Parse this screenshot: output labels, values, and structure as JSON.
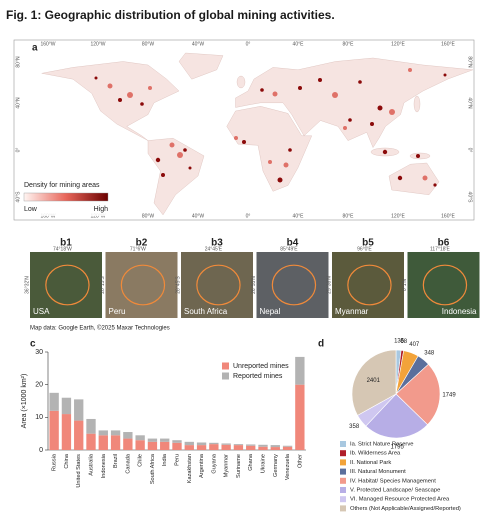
{
  "title": "Fig. 1: Geographic distribution of global mining activities.",
  "map": {
    "panel": "a",
    "lon_labels": [
      "160°W",
      "120°W",
      "80°W",
      "40°W",
      "0°",
      "40°E",
      "80°E",
      "120°E",
      "160°E"
    ],
    "lat_labels": [
      "80°N",
      "40°N",
      "0°",
      "40°S"
    ],
    "legend_title": "Density for mining areas",
    "legend_low": "Low",
    "legend_high": "High"
  },
  "insets": [
    {
      "label": "b1",
      "lon": "74°18'W",
      "lat": "36°32'N",
      "place": "USA"
    },
    {
      "label": "b2",
      "lon": "71°6'W",
      "lat": "20°15'S",
      "place": "Peru"
    },
    {
      "label": "b3",
      "lon": "24°45'E",
      "lat": "28°45'S",
      "place": "South Africa"
    },
    {
      "label": "b4",
      "lon": "85°49'E",
      "lat": "26°55'N",
      "place": "Nepal"
    },
    {
      "label": "b5",
      "lon": "96°0'E",
      "lat": "25°38'N",
      "place": "Myanmar"
    },
    {
      "label": "b6",
      "lon": "117°18'E",
      "lat": "0°1'N",
      "place": "Indonesia"
    }
  ],
  "credit": "Map data: Google Earth, ©2025 Maxar Technologies",
  "chart_data": [
    {
      "type": "bar",
      "panel": "c",
      "ylabel": "Area (×1000 km²)",
      "categories": [
        "Russia",
        "China",
        "United States",
        "Australia",
        "Indonesia",
        "Brazil",
        "Canada",
        "Chile",
        "South Africa",
        "India",
        "Peru",
        "Kazakhstan",
        "Argentina",
        "Guyana",
        "Myanmar",
        "Suriname",
        "Ghana",
        "Ukraine",
        "Germany",
        "Venezuela",
        "Other"
      ],
      "series": [
        {
          "name": "Unreported mines",
          "color": "#f0877a",
          "values": [
            12,
            11,
            9,
            5,
            4.5,
            4.5,
            3.5,
            3,
            2.5,
            2.5,
            2.2,
            1.5,
            1.5,
            1.8,
            1.6,
            1.5,
            1.3,
            1,
            0.9,
            1,
            20
          ]
        },
        {
          "name": "Reported mines",
          "color": "#b3b3b3",
          "values": [
            5.5,
            5,
            6.5,
            4.5,
            1.5,
            1.5,
            2,
            1.5,
            1,
            1,
            0.8,
            1,
            0.8,
            0.4,
            0.4,
            0.3,
            0.4,
            0.6,
            0.6,
            0.3,
            8.5
          ]
        }
      ],
      "ylim": [
        0,
        30
      ],
      "yticks": [
        0,
        10,
        20,
        30
      ],
      "legend": "upper-right"
    },
    {
      "type": "pie",
      "panel": "d",
      "categories": [
        "Ia. Strict Nature Reserve",
        "Ib. Wilderness Area",
        "II. National Park",
        "III. Natural Monument",
        "IV. Habitat/ Species Management",
        "V. Protected Landscape/ Seascape",
        "VI. Managed Resource Protected Area",
        "Others (Not Applicable/Assigned/Reported)"
      ],
      "values": [
        135,
        68,
        407,
        348,
        1749,
        1795,
        358,
        2401
      ],
      "colors": [
        "#a8c8e0",
        "#b01e2a",
        "#f2a33a",
        "#5b6f9c",
        "#f29a8c",
        "#b7aee6",
        "#cfc7f0",
        "#d6c7b4"
      ]
    }
  ]
}
